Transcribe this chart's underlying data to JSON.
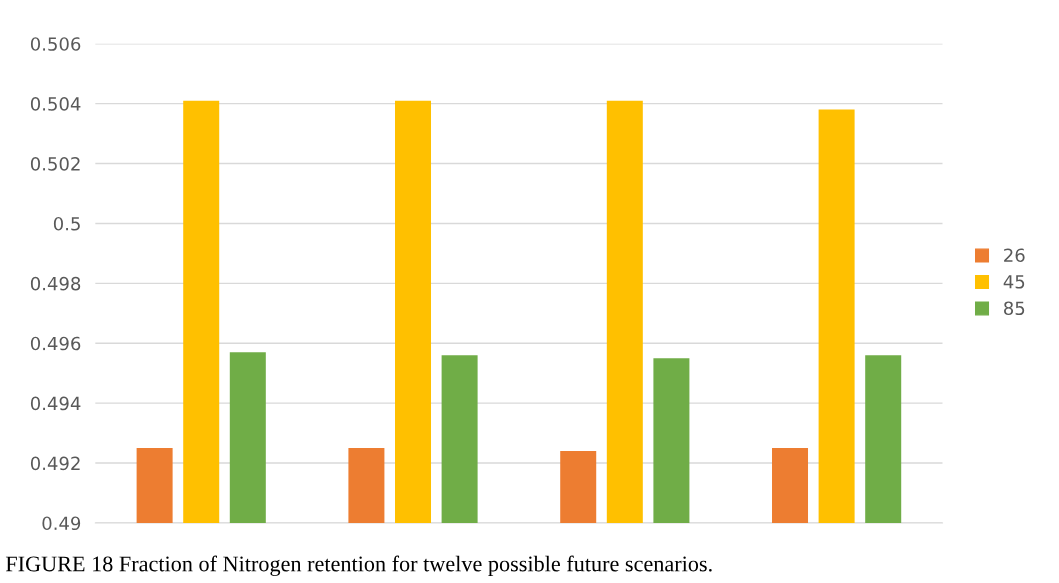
{
  "chart_data": {
    "type": "bar",
    "categories": [
      null,
      null,
      null,
      null
    ],
    "series": [
      {
        "name": "26",
        "color": "#ed7d31",
        "values": [
          0.4925,
          0.4925,
          0.4924,
          0.4925
        ]
      },
      {
        "name": "45",
        "color": "#ffc000",
        "values": [
          0.5041,
          0.5041,
          0.5041,
          0.5038
        ]
      },
      {
        "name": "85",
        "color": "#70ad47",
        "values": [
          0.4957,
          0.4956,
          0.4955,
          0.4956
        ]
      }
    ],
    "ylim": [
      0.49,
      0.506
    ],
    "yticks": [
      0.49,
      0.492,
      0.494,
      0.496,
      0.498,
      0.5,
      0.502,
      0.504,
      0.506
    ],
    "grid": "y",
    "legend": "right",
    "annotations": [
      "FIGURE 18 Fraction of Nitrogen retention for twelve possible future scenarios."
    ]
  }
}
